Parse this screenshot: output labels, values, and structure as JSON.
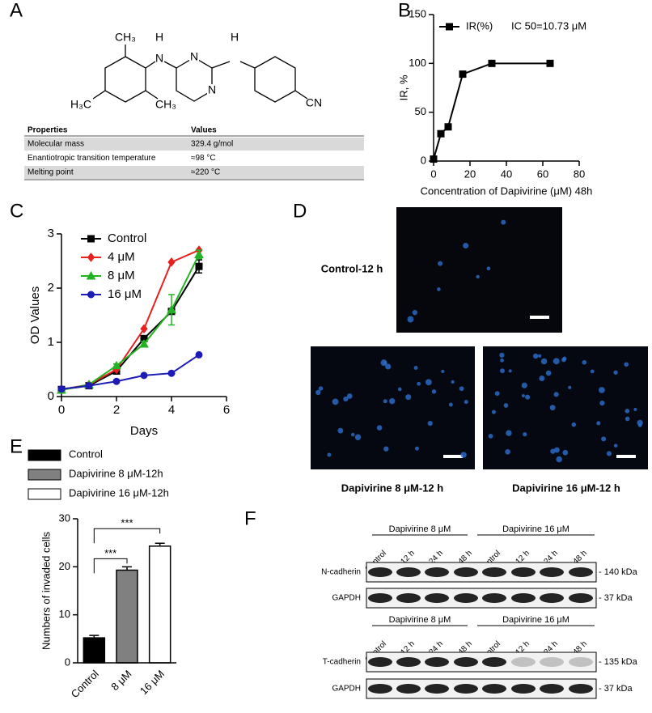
{
  "panel_labels": [
    "A",
    "B",
    "C",
    "D",
    "E",
    "F"
  ],
  "structure": {
    "atoms": [
      "CH₃",
      "H",
      "H",
      "N",
      "N",
      "N",
      "H₃C",
      "CH₃",
      "CN"
    ]
  },
  "table": {
    "header": [
      "Properties",
      "Values"
    ],
    "rows": [
      [
        "Molecular mass",
        "329.4 g/mol"
      ],
      [
        "Enantiotropic transition temperature",
        "≈98 °C"
      ],
      [
        "Melting point",
        "≈220 °C"
      ]
    ]
  },
  "chart_data": [
    {
      "type": "line",
      "xlabel": "Concentration of Dapivirine (μM) 48h",
      "ylabel": "IR, %",
      "x": [
        0,
        4,
        8,
        16,
        32,
        64
      ],
      "series": [
        {
          "name": "IR(%)",
          "color": "#000000",
          "marker": "square",
          "values": [
            2,
            28,
            35,
            89,
            100,
            100
          ]
        }
      ],
      "annotation": "IC 50=10.73 μM",
      "xlim": [
        0,
        80
      ],
      "xticks": [
        0,
        20,
        40,
        60,
        80
      ],
      "ylim": [
        0,
        150
      ],
      "yticks": [
        0,
        50,
        100,
        150
      ]
    },
    {
      "type": "line",
      "xlabel": "Days",
      "ylabel": "OD Values",
      "x": [
        0,
        1,
        2,
        3,
        4,
        5
      ],
      "series": [
        {
          "name": "Control",
          "color": "#000000",
          "marker": "square",
          "values": [
            0.13,
            0.2,
            0.47,
            1.07,
            1.57,
            2.4
          ],
          "errors": [
            0,
            0,
            0,
            0.05,
            0.05,
            0.12
          ]
        },
        {
          "name": "4 μM",
          "color": "#e8201e",
          "marker": "diamond",
          "values": [
            0.13,
            0.22,
            0.5,
            1.25,
            2.48,
            2.7
          ]
        },
        {
          "name": "8 μM",
          "color": "#22b322",
          "marker": "triangle",
          "values": [
            0.12,
            0.22,
            0.57,
            0.97,
            1.6,
            2.62
          ],
          "errors": [
            0,
            0,
            0.03,
            0.05,
            0.28,
            0.08
          ]
        },
        {
          "name": "16 μM",
          "color": "#1d1db5",
          "marker": "circle",
          "values": [
            0.14,
            0.2,
            0.28,
            0.39,
            0.43,
            0.77
          ]
        }
      ],
      "xlim": [
        0,
        6
      ],
      "xticks": [
        0,
        2,
        4,
        6
      ],
      "ylim": [
        0,
        3
      ],
      "yticks": [
        0,
        1,
        2,
        3
      ]
    },
    {
      "type": "bar",
      "ylabel": "Numbers of invaded cells",
      "categories": [
        "Control",
        "8 μM",
        "16 μM"
      ],
      "values": [
        5.2,
        19.3,
        24.3
      ],
      "errors": [
        0.5,
        0.7,
        0.6
      ],
      "colors": [
        "#000000",
        "#808080",
        "#ffffff"
      ],
      "legend": [
        "Control",
        "Dapivirine 8 μM-12h",
        "Dapivirine 16 μM-12h"
      ],
      "annotations": [
        "***",
        "***"
      ],
      "ylim": [
        0,
        30
      ],
      "yticks": [
        0,
        10,
        20,
        30
      ]
    }
  ],
  "images": {
    "labels": [
      "Control-12 h",
      "Dapivirine 8 μM-12 h",
      "Dapivirine 16 μM-12 h"
    ]
  },
  "blots": [
    {
      "groups": [
        "Dapivirine 8 μM",
        "Dapivirine 16 μM"
      ],
      "lanes": [
        "Control",
        "12 h",
        "24 h",
        "48 h",
        "Control",
        "12 h",
        "24 h",
        "48 h"
      ],
      "rows": [
        {
          "name": "N-cadherin",
          "kda": "- 140 kDa"
        },
        {
          "name": "GAPDH",
          "kda": "- 37 kDa"
        }
      ]
    },
    {
      "groups": [
        "Dapivirine 8 μM",
        "Dapivirine 16 μM"
      ],
      "lanes": [
        "Control",
        "12 h",
        "24 h",
        "48 h",
        "Control",
        "12 h",
        "24 h",
        "48 h"
      ],
      "rows": [
        {
          "name": "T-cadherin",
          "kda": "- 135 kDa"
        },
        {
          "name": "GAPDH",
          "kda": "- 37 kDa"
        }
      ]
    }
  ]
}
